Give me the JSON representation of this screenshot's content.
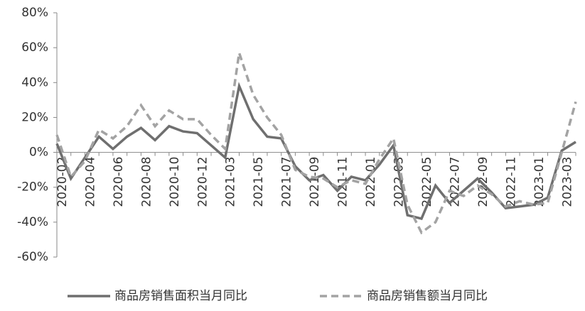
{
  "chart_data": {
    "type": "line",
    "categories": [
      "2020-02",
      null,
      "2020-04",
      null,
      "2020-06",
      null,
      "2020-08",
      null,
      "2020-10",
      null,
      "2020-12",
      null,
      "2021-03",
      null,
      "2021-05",
      null,
      "2021-07",
      null,
      "2021-09",
      null,
      "2021-11",
      null,
      "2022-01",
      null,
      "2022-03",
      null,
      "2022-05",
      null,
      "2022-07",
      null,
      "2022-09",
      null,
      "2022-11",
      null,
      "2023-01",
      null,
      "2023-03",
      null
    ],
    "series": [
      {
        "name": "商品房销售面积当月同比",
        "color": "#6f6f6f",
        "dash": false,
        "values": [
          5,
          -15,
          -3,
          9,
          2,
          9,
          14,
          7,
          15,
          12,
          11,
          4,
          -3,
          38,
          19,
          9,
          8,
          -8,
          -16,
          -13,
          -22,
          -14,
          -16,
          -7,
          4,
          -36,
          -38,
          -19,
          -29,
          -22,
          -15,
          -23,
          -32,
          -31,
          -30,
          -26,
          1,
          6
        ]
      },
      {
        "name": "商品房销售额当月同比",
        "color": "#a3a3a3",
        "dash": true,
        "values": [
          10,
          -14,
          -5,
          13,
          8,
          15,
          27,
          15,
          24,
          19,
          19,
          10,
          2,
          57,
          33,
          20,
          10,
          -10,
          -14,
          -15,
          -20,
          -16,
          -18,
          -4,
          8,
          -30,
          -46,
          -40,
          -22,
          -25,
          -19,
          -24,
          -31,
          -28,
          -30,
          -29,
          0,
          29
        ]
      }
    ],
    "ylim": [
      -60,
      80
    ],
    "yticks": [
      {
        "value": -60,
        "label": "-60%"
      },
      {
        "value": -40,
        "label": "-40%"
      },
      {
        "value": -20,
        "label": "-20%"
      },
      {
        "value": 0,
        "label": "0%"
      },
      {
        "value": 20,
        "label": "20%"
      },
      {
        "value": 40,
        "label": "40%"
      },
      {
        "value": 60,
        "label": "60%"
      },
      {
        "value": 80,
        "label": "80%"
      }
    ]
  }
}
